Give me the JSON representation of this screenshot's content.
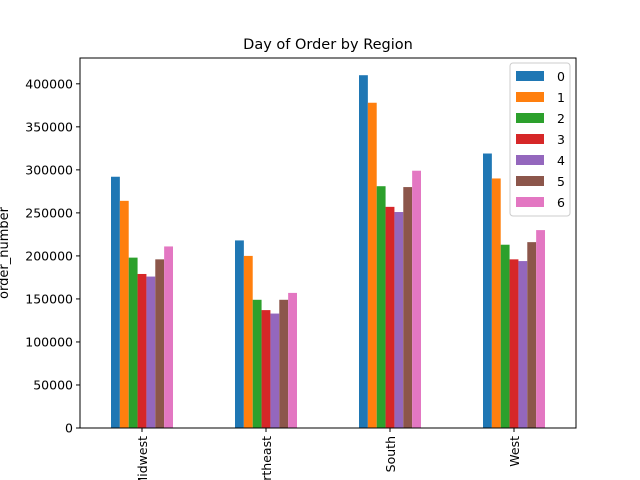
{
  "chart_data": {
    "type": "bar",
    "title": "Day of Order by Region",
    "xlabel": "",
    "ylabel": "order_number",
    "categories": [
      "Midwest",
      "Northeast",
      "South",
      "West"
    ],
    "ylim": [
      0,
      430000
    ],
    "yticks": [
      0,
      50000,
      100000,
      150000,
      200000,
      250000,
      300000,
      350000,
      400000
    ],
    "grid": false,
    "legend_position": "top-right",
    "series": [
      {
        "name": "0",
        "color": "#1f77b4",
        "values": [
          292000,
          218000,
          410000,
          319000
        ]
      },
      {
        "name": "1",
        "color": "#ff7f0e",
        "values": [
          264000,
          200000,
          378000,
          290000
        ]
      },
      {
        "name": "2",
        "color": "#2ca02c",
        "values": [
          198000,
          149000,
          281000,
          213000
        ]
      },
      {
        "name": "3",
        "color": "#d62728",
        "values": [
          179000,
          137000,
          257000,
          196000
        ]
      },
      {
        "name": "4",
        "color": "#9467bd",
        "values": [
          176000,
          133000,
          251000,
          194000
        ]
      },
      {
        "name": "5",
        "color": "#8c564b",
        "values": [
          196000,
          149000,
          280000,
          216000
        ]
      },
      {
        "name": "6",
        "color": "#e377c2",
        "values": [
          211000,
          157000,
          299000,
          230000
        ]
      }
    ]
  }
}
